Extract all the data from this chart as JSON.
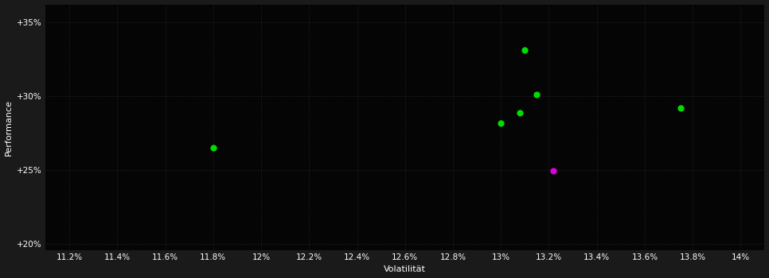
{
  "green_points": [
    [
      11.8,
      26.5
    ],
    [
      13.0,
      28.2
    ],
    [
      13.08,
      28.85
    ],
    [
      13.15,
      30.1
    ],
    [
      13.1,
      33.1
    ],
    [
      13.75,
      29.2
    ]
  ],
  "magenta_points": [
    [
      13.22,
      24.95
    ]
  ],
  "green_color": "#00dd00",
  "magenta_color": "#dd00dd",
  "background_color": "#1a1a1a",
  "plot_bg_color": "#050505",
  "grid_color": "#3a3a3a",
  "text_color": "#ffffff",
  "xlabel": "Volatilität",
  "ylabel": "Performance",
  "xlim": [
    0.111,
    0.141
  ],
  "ylim": [
    0.196,
    0.362
  ],
  "xtick_values": [
    0.112,
    0.114,
    0.116,
    0.118,
    0.12,
    0.122,
    0.124,
    0.126,
    0.128,
    0.13,
    0.132,
    0.134,
    0.136,
    0.138,
    0.14
  ],
  "xtick_labels": [
    "11.2%",
    "11.4%",
    "11.6%",
    "11.8%",
    "12%",
    "12.2%",
    "12.4%",
    "12.6%",
    "12.8%",
    "13%",
    "13.2%",
    "13.4%",
    "13.6%",
    "13.8%",
    "14%"
  ],
  "ytick_values": [
    0.2,
    0.25,
    0.3,
    0.35
  ],
  "ytick_labels": [
    "+20%",
    "+25%",
    "+30%",
    "+35%"
  ],
  "marker_size": 35,
  "xlabel_fontsize": 8,
  "ylabel_fontsize": 8,
  "tick_fontsize": 7.5
}
